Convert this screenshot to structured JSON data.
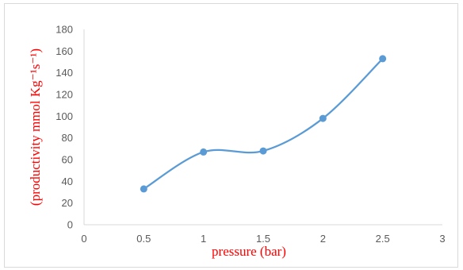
{
  "chart_data": {
    "type": "line",
    "title": "",
    "xlabel": "pressure (bar)",
    "ylabel": "(productivity mmol Kg⁻¹s⁻¹)",
    "xlim": [
      0,
      3
    ],
    "ylim": [
      0,
      180
    ],
    "x_ticks": [
      "0",
      "0.5",
      "1",
      "1.5",
      "2",
      "2.5",
      "3"
    ],
    "y_ticks": [
      "0",
      "20",
      "40",
      "60",
      "80",
      "100",
      "120",
      "140",
      "160",
      "180"
    ],
    "grid": false,
    "legend": "none",
    "smooth": true,
    "line_color": "#5b9bd5",
    "label_color": "#ff0000",
    "series": [
      {
        "x": [
          0.5,
          1,
          1.5,
          2,
          2.5
        ],
        "values": [
          33,
          67,
          68,
          98,
          153
        ]
      }
    ]
  }
}
